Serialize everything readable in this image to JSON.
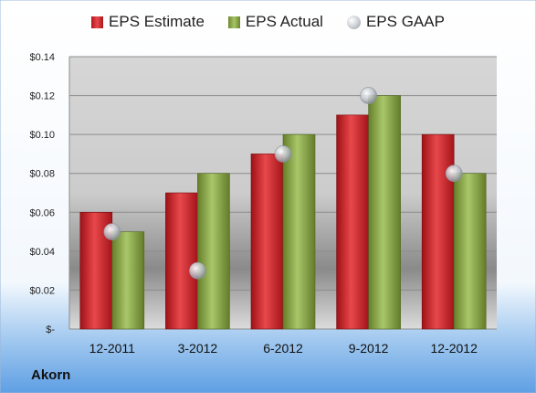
{
  "chart_data": {
    "type": "bar",
    "categories": [
      "12-2011",
      "3-2012",
      "6-2012",
      "9-2012",
      "12-2012"
    ],
    "series": [
      {
        "name": "EPS Estimate",
        "kind": "bar",
        "values": [
          0.06,
          0.07,
          0.09,
          0.11,
          0.1
        ],
        "color": "#d42a2e"
      },
      {
        "name": "EPS Actual",
        "kind": "bar",
        "values": [
          0.05,
          0.08,
          0.1,
          0.12,
          0.08
        ],
        "color": "#8cad4a"
      },
      {
        "name": "EPS GAAP",
        "kind": "marker",
        "values": [
          0.05,
          0.03,
          0.09,
          0.12,
          0.08
        ],
        "color": "#c0c4cc"
      }
    ],
    "ylim": [
      0,
      0.14
    ],
    "yticks": [
      0,
      0.02,
      0.04,
      0.06,
      0.08,
      0.1,
      0.12,
      0.14
    ],
    "ytick_labels": [
      "$-",
      "$0.02",
      "$0.04",
      "$0.06",
      "$0.08",
      "$0.10",
      "$0.12",
      "$0.14"
    ],
    "grid": true,
    "legend": "top-center",
    "company": "Akorn"
  }
}
